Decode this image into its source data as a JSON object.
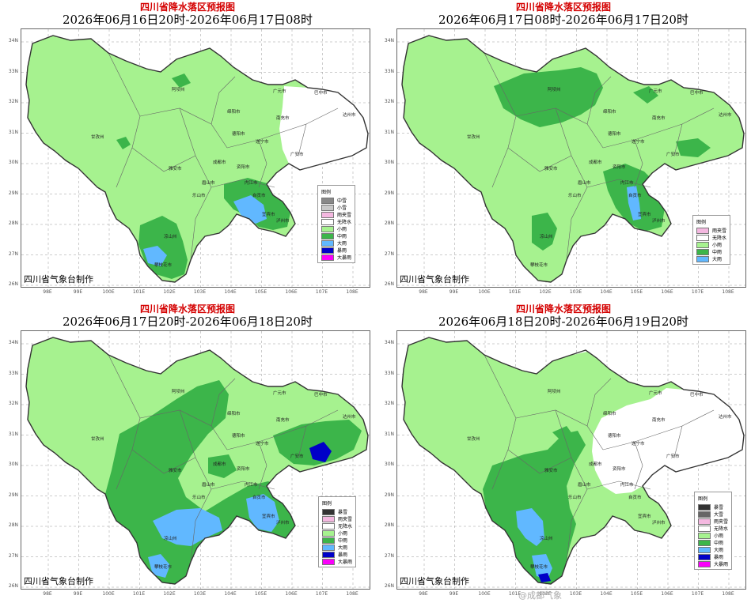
{
  "panels": [
    {
      "title": "四川省降水落区预报图",
      "period": "2026年06月16日20时-2026年06月17日08时",
      "credit": "四川省气象台制作",
      "legend": {
        "title": "图例",
        "items": [
          {
            "label": "中雪",
            "color": "#888888"
          },
          {
            "label": "小雪",
            "color": "#c8c8c8"
          },
          {
            "label": "雨夹雪",
            "color": "#f4b8e0"
          },
          {
            "label": "无降水",
            "color": "#ffffff"
          },
          {
            "label": "小雨",
            "color": "#a6f28f"
          },
          {
            "label": "中雨",
            "color": "#3cb54a"
          },
          {
            "label": "大雨",
            "color": "#61b8ff"
          },
          {
            "label": "暴雨",
            "color": "#0000c8"
          },
          {
            "label": "大暴雨",
            "color": "#fa00fa"
          }
        ]
      }
    },
    {
      "title": "四川省降水落区预报图",
      "period": "2026年06月17日08时-2026年06月17日20时",
      "credit": "四川省气象台制作",
      "legend": {
        "title": "图例",
        "items": [
          {
            "label": "雨夹雪",
            "color": "#f4b8e0"
          },
          {
            "label": "无降水",
            "color": "#ffffff"
          },
          {
            "label": "小雨",
            "color": "#a6f28f"
          },
          {
            "label": "中雨",
            "color": "#3cb54a"
          },
          {
            "label": "大雨",
            "color": "#61b8ff"
          }
        ]
      }
    },
    {
      "title": "四川省降水落区预报图",
      "period": "2026年06月17日20时-2026年06月18日20时",
      "credit": "四川省气象台制作",
      "legend": {
        "title": "图例",
        "items": [
          {
            "label": "暴雪",
            "color": "#333333"
          },
          {
            "label": "雨夹雪",
            "color": "#f4b8e0"
          },
          {
            "label": "无降水",
            "color": "#ffffff"
          },
          {
            "label": "小雨",
            "color": "#a6f28f"
          },
          {
            "label": "中雨",
            "color": "#3cb54a"
          },
          {
            "label": "大雨",
            "color": "#61b8ff"
          },
          {
            "label": "暴雨",
            "color": "#0000c8"
          },
          {
            "label": "大暴雨",
            "color": "#fa00fa"
          }
        ]
      }
    },
    {
      "title": "四川省降水落区预报图",
      "period": "2026年06月18日20时-2026年06月19日20时",
      "credit": "四川省气象台制作",
      "legend": {
        "title": "图例",
        "items": [
          {
            "label": "暴雪",
            "color": "#333333"
          },
          {
            "label": "大雪",
            "color": "#666666"
          },
          {
            "label": "雨夹雪",
            "color": "#f4b8e0"
          },
          {
            "label": "无降水",
            "color": "#ffffff"
          },
          {
            "label": "小雨",
            "color": "#a6f28f"
          },
          {
            "label": "中雨",
            "color": "#3cb54a"
          },
          {
            "label": "大雨",
            "color": "#61b8ff"
          },
          {
            "label": "暴雨",
            "color": "#0000c8"
          },
          {
            "label": "大暴雨",
            "color": "#fa00fa"
          }
        ]
      }
    }
  ],
  "axes": {
    "lat_labels": [
      "34N",
      "33N",
      "32N",
      "31N",
      "30N",
      "29N",
      "28N",
      "27N",
      "26N"
    ],
    "lon_labels": [
      "98E",
      "99E",
      "100E",
      "101E",
      "102E",
      "103E",
      "104E",
      "105E",
      "106E",
      "107E",
      "108E"
    ]
  },
  "cities": [
    "阿坝州",
    "绵阳市",
    "广元市",
    "巴中市",
    "达州市",
    "南充市",
    "德阳市",
    "成都市",
    "遂宁市",
    "广安市",
    "甘孜州",
    "资阳市",
    "眉山市",
    "内江市",
    "雅安市",
    "乐山市",
    "自贡市",
    "宜宾市",
    "泸州市",
    "凉山州",
    "攀枝花市"
  ],
  "map_colors": {
    "light_rain": "#a6f28f",
    "moderate_rain": "#3cb54a",
    "heavy_rain": "#61b8ff",
    "storm": "#0000c8",
    "no_rain": "#ffffff",
    "sleet": "#f4b8e0",
    "snow": "#c8c8c8"
  },
  "watermark": "@成都气象"
}
